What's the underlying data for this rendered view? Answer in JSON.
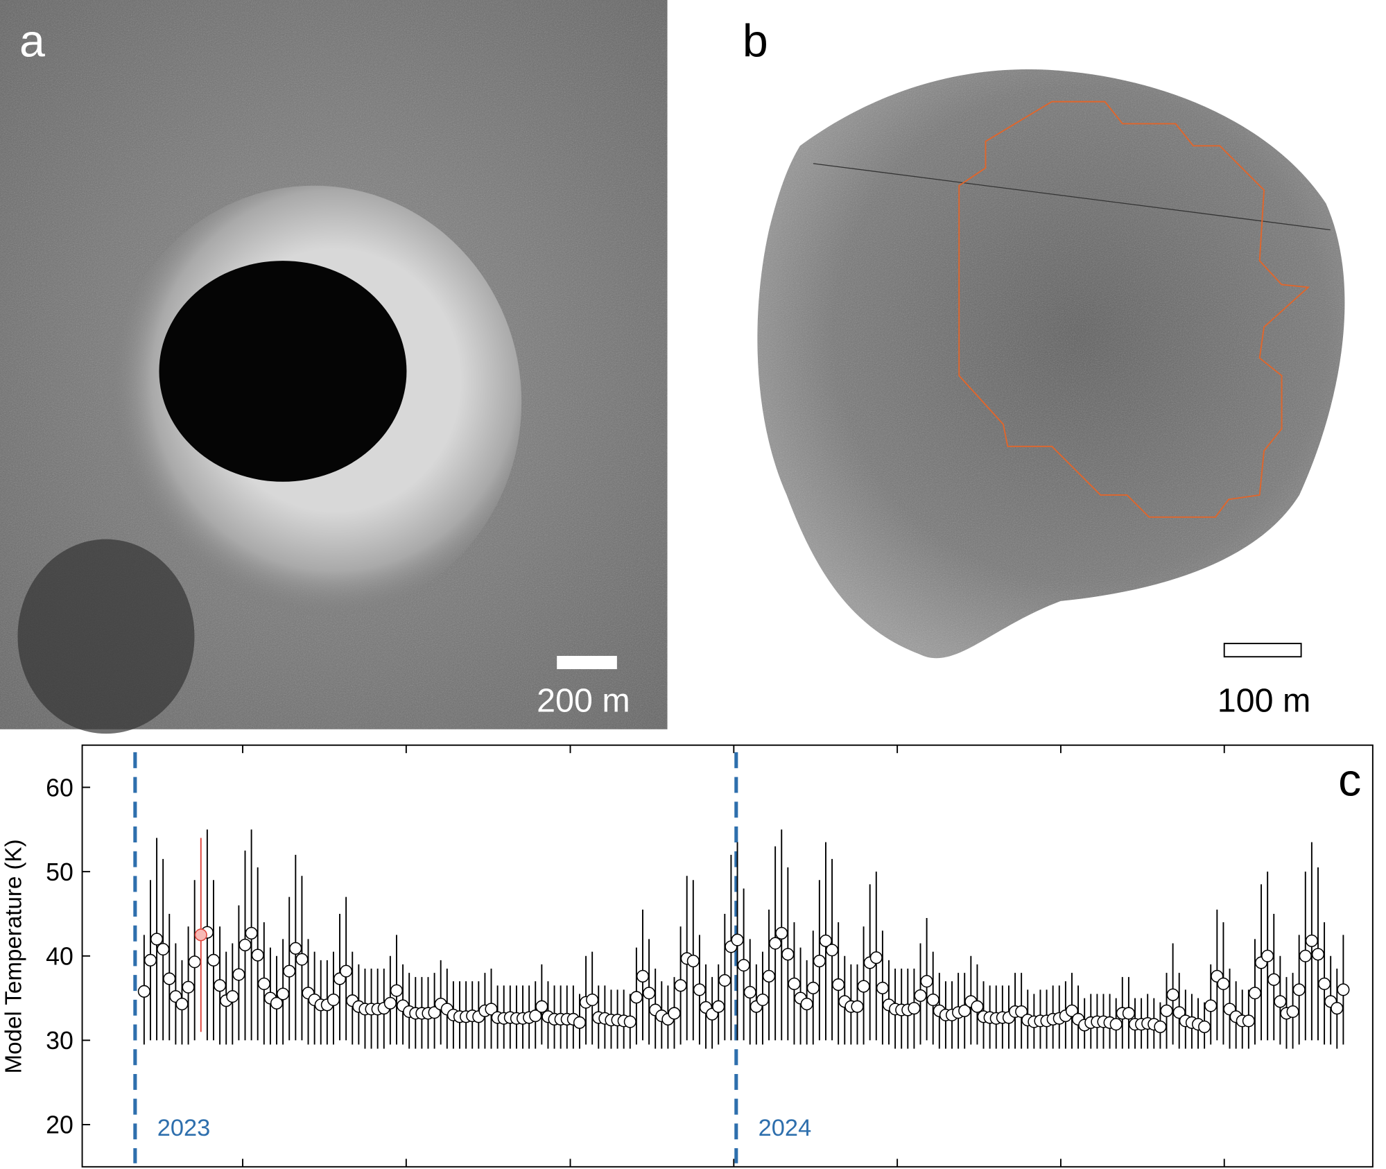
{
  "panels": {
    "a": {
      "label": "a",
      "scale_bar": "200 m"
    },
    "b": {
      "label": "b",
      "scale_bar": "100 m"
    }
  },
  "chart_data": {
    "type": "errorbar",
    "panel_label": "c",
    "ylabel": "Model Temperature (K)",
    "x": [
      2023.015,
      2023.0255,
      2023.036,
      2023.0465,
      2023.057,
      2023.0675,
      2023.078,
      2023.0885,
      2023.099,
      2023.1095,
      2023.12,
      2023.1305,
      2023.141,
      2023.1515,
      2023.162,
      2023.1725,
      2023.183,
      2023.1935,
      2023.204,
      2023.2145,
      2023.225,
      2023.2355,
      2023.246,
      2023.2565,
      2023.267,
      2023.2775,
      2023.288,
      2023.2985,
      2023.309,
      2023.3195,
      2023.33,
      2023.3405,
      2023.351,
      2023.3615,
      2023.372,
      2023.3825,
      2023.393,
      2023.4035,
      2023.414,
      2023.4245,
      2023.435,
      2023.4455,
      2023.456,
      2023.4665,
      2023.477,
      2023.4875,
      2023.498,
      2023.5085,
      2023.519,
      2023.5295,
      2023.54,
      2023.5505,
      2023.561,
      2023.5715,
      2023.582,
      2023.5925,
      2023.603,
      2023.6135,
      2023.624,
      2023.6345,
      2023.645,
      2023.6555,
      2023.666,
      2023.6765,
      2023.687,
      2023.6975,
      2023.708,
      2023.7185,
      2023.729,
      2023.7395,
      2023.75,
      2023.7605,
      2023.771,
      2023.7815,
      2023.792,
      2023.8025,
      2023.813,
      2023.8235,
      2023.834,
      2023.8445,
      2023.855,
      2023.8655,
      2023.876,
      2023.8865,
      2023.897,
      2023.9075,
      2023.918,
      2023.9285,
      2023.939,
      2023.9495,
      2023.96,
      2023.9705,
      2023.981,
      2023.9915,
      2024.002,
      2024.0125,
      2024.023,
      2024.0335,
      2024.044,
      2024.0545,
      2024.065,
      2024.0755,
      2024.086,
      2024.0965,
      2024.107,
      2024.1175,
      2024.128,
      2024.1385,
      2024.149,
      2024.1595,
      2024.17,
      2024.1805,
      2024.191,
      2024.2015,
      2024.212,
      2024.2225,
      2024.233,
      2024.2435,
      2024.254,
      2024.2645,
      2024.275,
      2024.2855,
      2024.296,
      2024.3065,
      2024.317,
      2024.3275,
      2024.338,
      2024.3485,
      2024.359,
      2024.3695,
      2024.38,
      2024.3905,
      2024.401,
      2024.4115,
      2024.422,
      2024.4325,
      2024.443,
      2024.4535,
      2024.464,
      2024.4745,
      2024.485,
      2024.4955,
      2024.506,
      2024.5165,
      2024.527,
      2024.5375,
      2024.548,
      2024.5585,
      2024.569,
      2024.5795,
      2024.59,
      2024.6005,
      2024.611,
      2024.6215,
      2024.632,
      2024.6425,
      2024.653,
      2024.6635,
      2024.674,
      2024.6845,
      2024.695,
      2024.7055,
      2024.716,
      2024.7265,
      2024.737,
      2024.7475,
      2024.758,
      2024.7685,
      2024.779,
      2024.7895,
      2024.8,
      2024.8105,
      2024.821,
      2024.8315,
      2024.842,
      2024.8525,
      2024.863,
      2024.8735,
      2024.884,
      2024.8945,
      2024.905,
      2024.9155,
      2024.926,
      2024.9365,
      2024.947,
      2024.9575,
      2024.968,
      2024.9785,
      2024.989,
      2024.9995,
      2025.01
    ],
    "values": [
      35.8,
      39.5,
      42,
      40.8,
      37.3,
      35.2,
      34.3,
      36.3,
      39.3,
      42.5,
      42.8,
      39.5,
      36.5,
      34.7,
      35.2,
      37.8,
      41.3,
      42.7,
      40.1,
      36.7,
      35,
      34.4,
      35.5,
      38.2,
      40.9,
      39.6,
      35.6,
      34.8,
      34.2,
      34.2,
      34.8,
      37.3,
      38.2,
      34.7,
      34,
      33.7,
      33.7,
      33.7,
      33.8,
      34.4,
      35.9,
      34.1,
      33.4,
      33.2,
      33.2,
      33.2,
      33.3,
      34.3,
      33.7,
      33,
      32.8,
      32.8,
      32.9,
      32.8,
      33.5,
      33.7,
      32.7,
      32.6,
      32.7,
      32.6,
      32.6,
      32.7,
      32.9,
      34,
      32.8,
      32.5,
      32.5,
      32.5,
      32.5,
      32.1,
      34.5,
      34.8,
      32.7,
      32.6,
      32.4,
      32.4,
      32.3,
      32.2,
      35.1,
      37.6,
      35.6,
      33.6,
      32.9,
      32.5,
      33.2,
      36.5,
      39.7,
      39.4,
      36,
      33.9,
      33.1,
      34,
      37.1,
      41.1,
      41.9,
      38.9,
      35.7,
      34,
      34.8,
      37.6,
      41.5,
      42.7,
      40.2,
      36.7,
      35,
      34.3,
      36.2,
      39.4,
      41.8,
      40.7,
      36.6,
      34.6,
      34,
      34,
      36.4,
      39.2,
      39.8,
      36.2,
      34.2,
      33.7,
      33.6,
      33.6,
      33.8,
      35.3,
      37,
      34.8,
      33.5,
      33,
      33,
      33.3,
      33.5,
      34.6,
      34,
      32.8,
      32.7,
      32.6,
      32.7,
      32.7,
      33.4,
      33.4,
      32.4,
      32.2,
      32.3,
      32.3,
      32.5,
      32.6,
      32.9,
      33.5,
      32.5,
      31.8,
      32.1,
      32.2,
      32.2,
      32.1,
      31.9,
      33.2,
      33.2,
      31.9,
      31.9,
      32,
      31.9,
      31.6,
      33.5,
      35.4,
      33.3,
      32.3,
      32.1,
      31.9,
      31.6,
      34.1,
      37.6,
      36.7,
      33.7,
      32.8,
      32.3,
      32.3,
      35.6,
      39.2,
      40,
      37.2,
      34.6,
      33.2,
      33.4,
      36,
      40,
      41.8,
      40.2,
      36.7,
      34.6,
      33.8,
      36
    ],
    "lower": [
      29.5,
      30,
      30,
      30,
      30,
      29.5,
      29.5,
      29.5,
      30,
      31,
      30,
      30,
      29.5,
      29.5,
      29.5,
      30,
      30,
      30,
      30,
      29.5,
      29.5,
      29.5,
      29.5,
      30,
      30,
      30,
      29.5,
      29.5,
      29.5,
      29.5,
      29.5,
      30,
      30,
      29.5,
      29.5,
      29,
      29,
      29,
      29,
      29.5,
      29.5,
      29.5,
      29,
      29,
      29,
      29,
      29,
      29.5,
      29,
      29,
      29,
      29,
      29,
      29,
      29,
      29,
      29,
      29,
      29,
      29,
      29,
      29,
      29,
      29.5,
      29,
      29,
      29,
      29,
      29,
      29,
      29.5,
      29.5,
      29,
      29,
      29,
      29,
      29,
      29,
      29.5,
      30,
      29.5,
      29,
      29,
      29,
      29,
      29.5,
      30,
      30,
      29.5,
      29,
      29,
      29.5,
      30,
      30,
      30,
      30,
      29.5,
      29.5,
      29.5,
      30,
      30,
      30,
      30,
      29.5,
      29.5,
      29.5,
      29.5,
      30,
      30,
      30,
      29.5,
      29.5,
      29.5,
      29.5,
      29.5,
      30,
      30,
      29.5,
      29.5,
      29,
      29,
      29,
      29,
      29.5,
      30,
      29.5,
      29,
      29,
      29,
      29,
      29,
      29.5,
      29.5,
      29,
      29,
      29,
      29,
      29,
      29,
      29,
      29,
      29,
      29,
      29,
      29,
      29,
      29,
      29,
      29,
      29,
      29,
      29,
      29,
      29,
      29,
      29,
      29,
      29,
      29,
      29,
      29,
      29,
      29,
      29.5,
      29,
      29,
      29,
      29,
      29,
      29.5,
      30,
      29.5,
      29,
      29,
      29,
      29,
      29.5,
      30,
      30,
      30,
      29.5,
      29,
      29,
      29.5,
      30,
      30,
      30,
      29.5,
      29.5,
      29,
      29.5
    ],
    "upper": [
      42.5,
      49,
      54,
      51.5,
      45,
      41.5,
      39.5,
      43.5,
      49,
      54,
      55,
      49,
      43.5,
      40.5,
      41.5,
      46,
      52.5,
      55,
      50.5,
      44,
      41,
      40,
      42,
      47,
      52,
      49.5,
      42,
      40.5,
      39.5,
      39.5,
      40.5,
      45,
      47,
      40.5,
      39,
      38.5,
      38.5,
      38.5,
      38.5,
      40,
      42.5,
      39,
      38,
      37.5,
      37.5,
      37.5,
      38,
      39.5,
      38.5,
      37,
      37,
      37,
      37,
      37,
      38,
      38.5,
      36.5,
      36.5,
      36.5,
      36.5,
      36.5,
      36.5,
      37,
      39,
      37,
      36.5,
      36.5,
      36.5,
      36.5,
      35.5,
      40,
      40.5,
      36.5,
      36.5,
      36,
      36,
      36,
      35.5,
      41,
      45.5,
      42,
      38.5,
      37,
      36.5,
      37.5,
      43.5,
      49.5,
      49,
      42.5,
      39,
      37.5,
      39,
      45,
      52,
      53.5,
      48,
      42,
      39,
      40.5,
      45.5,
      53,
      55,
      50.5,
      44,
      41,
      39.5,
      43,
      49,
      53.5,
      51.5,
      44,
      40,
      39,
      39,
      43.5,
      48.5,
      50,
      43,
      39.5,
      38.5,
      38.5,
      38.5,
      38.5,
      41.5,
      44.5,
      40.5,
      38,
      37,
      37,
      38,
      38,
      40,
      39,
      37,
      36.5,
      36.5,
      36.5,
      36.5,
      38,
      38,
      36,
      35.5,
      36,
      36,
      36.5,
      36.5,
      37,
      38,
      36.5,
      35,
      35.5,
      35.5,
      35.5,
      35.5,
      35,
      37.5,
      37.5,
      35,
      35,
      35.5,
      35,
      34.5,
      38,
      41.5,
      38,
      36,
      35.5,
      35,
      34.5,
      39,
      45.5,
      44,
      38.5,
      37,
      36,
      36,
      42,
      48.5,
      50,
      45,
      40,
      37.5,
      38,
      42.5,
      50,
      53.5,
      50.5,
      44,
      40,
      38.5,
      42.5
    ],
    "color": "#000000",
    "marker_fill": "#ffffff",
    "highlight": {
      "index": 9,
      "color": "#e0443c",
      "fill": "#f7b9b5"
    },
    "vlines": [
      {
        "x": 2023,
        "label": "2023"
      },
      {
        "x": 2024,
        "label": "2024"
      }
    ],
    "vline_color": "#2e6fad",
    "xlim": [
      2022.912,
      2025.059
    ],
    "xticks": [
      2023.179,
      2023.451,
      2023.724,
      2023.996,
      2024.268,
      2024.54,
      2024.812
    ],
    "ylim": [
      15,
      65
    ],
    "yticks": [
      20,
      30,
      40,
      50,
      60
    ]
  }
}
